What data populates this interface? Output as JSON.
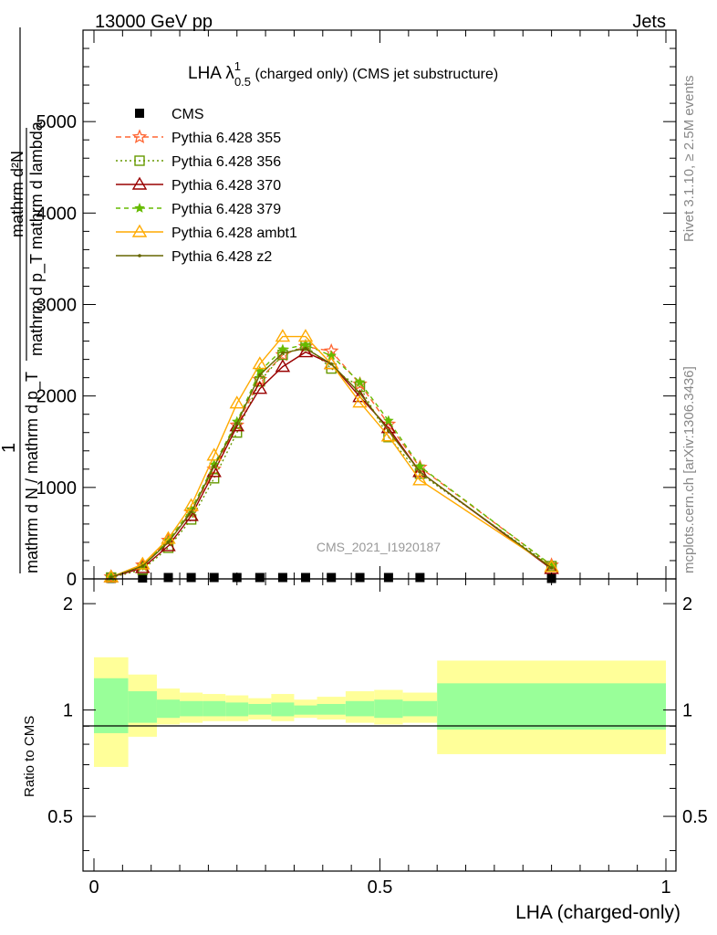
{
  "header": {
    "left": "13000 GeV pp",
    "right": "Jets"
  },
  "side_labels": {
    "rivet": "Rivet 3.1.10, ≥ 2.5M events",
    "mcplots": "mcplots.cern.ch [arXiv:1306.3436]"
  },
  "watermark": "CMS_2021_I1920187",
  "main_panel": {
    "title_main": "LHA λ",
    "title_sup": "1",
    "title_sub": "0.5",
    "title_rest": " (charged only) (CMS jet substructure)",
    "ylabel_top": "mathrm d²N",
    "ylabel_top2": "mathrm d p_T mathrm d lambda",
    "ylabel_one": "1",
    "ylabel_bottom": "mathrm d N / mathrm d p_T",
    "ytick_labels": [
      "0",
      "1000",
      "2000",
      "3000",
      "4000",
      "5000"
    ]
  },
  "ratio_panel": {
    "ylabel": "Ratio to CMS",
    "ytick_labels": [
      "0.5",
      "1",
      "2"
    ],
    "xlabel": "LHA (charged-only)",
    "xtick_labels": [
      "0",
      "0.5",
      "1"
    ]
  },
  "colors": {
    "band_outer": "#ffff99",
    "band_inner": "#99ff99",
    "s355": "#ff6633",
    "s356": "#669900",
    "s370": "#990000",
    "s379": "#66bb00",
    "sambt1": "#ffaa00",
    "sz2": "#666600"
  },
  "chart_data": {
    "type": "line",
    "xlim": [
      0,
      1
    ],
    "ylim": [
      0,
      6000
    ],
    "ratio_ylim": [
      0.35,
      2.35
    ],
    "x": [
      0.03,
      0.085,
      0.13,
      0.17,
      0.21,
      0.25,
      0.29,
      0.33,
      0.37,
      0.415,
      0.465,
      0.515,
      0.57,
      0.8
    ],
    "series": [
      {
        "name": "CMS",
        "marker": "square",
        "values": [
          5,
          10,
          15,
          15,
          15,
          15,
          15,
          15,
          15,
          15,
          15,
          15,
          15,
          5
        ]
      },
      {
        "name": "Pythia 6.428 355",
        "marker": "star",
        "values": [
          20,
          150,
          420,
          730,
          1200,
          1680,
          2180,
          2450,
          2540,
          2490,
          2130,
          1690,
          1220,
          150
        ]
      },
      {
        "name": "Pythia 6.428 356",
        "marker": "open-square",
        "values": [
          15,
          100,
          340,
          650,
          1100,
          1600,
          2160,
          2450,
          2550,
          2300,
          2100,
          1550,
          1150,
          140
        ]
      },
      {
        "name": "Pythia 6.428 370",
        "marker": "open-triangle",
        "values": [
          20,
          120,
          360,
          690,
          1170,
          1670,
          2080,
          2320,
          2480,
          2350,
          1990,
          1650,
          1170,
          110
        ]
      },
      {
        "name": "Pythia 6.428 379",
        "marker": "small-star",
        "values": [
          20,
          140,
          420,
          760,
          1250,
          1720,
          2270,
          2510,
          2560,
          2440,
          2150,
          1730,
          1230,
          150
        ]
      },
      {
        "name": "Pythia 6.428 ambt1",
        "marker": "open-triangle",
        "values": [
          20,
          160,
          440,
          800,
          1350,
          1920,
          2350,
          2650,
          2650,
          2350,
          1930,
          1560,
          1080,
          130
        ]
      },
      {
        "name": "Pythia 6.428 z2",
        "marker": "dot",
        "values": [
          20,
          140,
          400,
          730,
          1230,
          1700,
          2230,
          2470,
          2520,
          2350,
          2030,
          1620,
          1170,
          120
        ]
      }
    ],
    "ratio_bins": [
      {
        "x0": 0.0,
        "x1": 0.06,
        "outer": [
          0.69,
          1.41
        ],
        "inner": [
          0.86,
          1.23
        ]
      },
      {
        "x0": 0.06,
        "x1": 0.11,
        "outer": [
          0.84,
          1.26
        ],
        "inner": [
          0.92,
          1.13
        ]
      },
      {
        "x0": 0.11,
        "x1": 0.15,
        "outer": [
          0.91,
          1.15
        ],
        "inner": [
          0.95,
          1.07
        ]
      },
      {
        "x0": 0.15,
        "x1": 0.19,
        "outer": [
          0.92,
          1.12
        ],
        "inner": [
          0.96,
          1.06
        ]
      },
      {
        "x0": 0.19,
        "x1": 0.23,
        "outer": [
          0.93,
          1.11
        ],
        "inner": [
          0.96,
          1.06
        ]
      },
      {
        "x0": 0.23,
        "x1": 0.27,
        "outer": [
          0.93,
          1.1
        ],
        "inner": [
          0.96,
          1.05
        ]
      },
      {
        "x0": 0.27,
        "x1": 0.31,
        "outer": [
          0.94,
          1.08
        ],
        "inner": [
          0.97,
          1.04
        ]
      },
      {
        "x0": 0.31,
        "x1": 0.35,
        "outer": [
          0.93,
          1.11
        ],
        "inner": [
          0.96,
          1.05
        ]
      },
      {
        "x0": 0.35,
        "x1": 0.39,
        "outer": [
          0.95,
          1.07
        ],
        "inner": [
          0.97,
          1.03
        ]
      },
      {
        "x0": 0.39,
        "x1": 0.44,
        "outer": [
          0.94,
          1.09
        ],
        "inner": [
          0.97,
          1.04
        ]
      },
      {
        "x0": 0.44,
        "x1": 0.49,
        "outer": [
          0.92,
          1.13
        ],
        "inner": [
          0.96,
          1.06
        ]
      },
      {
        "x0": 0.49,
        "x1": 0.54,
        "outer": [
          0.91,
          1.14
        ],
        "inner": [
          0.95,
          1.07
        ]
      },
      {
        "x0": 0.54,
        "x1": 0.6,
        "outer": [
          0.92,
          1.12
        ],
        "inner": [
          0.96,
          1.06
        ]
      },
      {
        "x0": 0.6,
        "x1": 1.0,
        "outer": [
          0.75,
          1.38
        ],
        "inner": [
          0.88,
          1.19
        ]
      }
    ]
  }
}
